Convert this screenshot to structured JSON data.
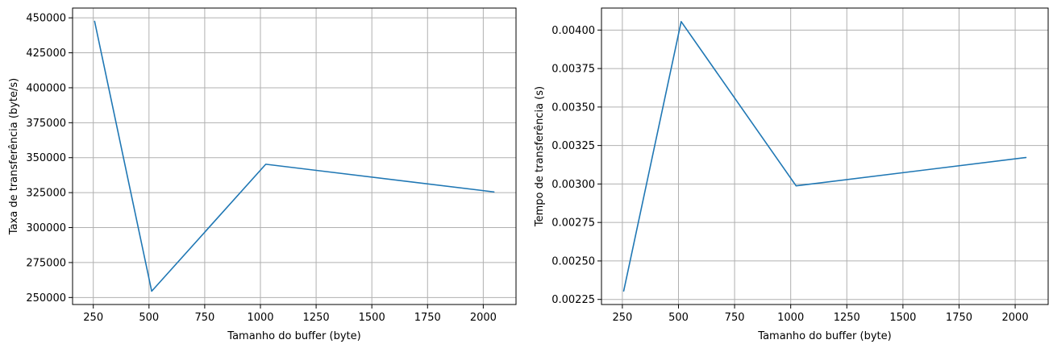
{
  "chart_data": [
    {
      "type": "line",
      "xlabel": "Tamanho do buffer (byte)",
      "ylabel": "Taxa de transferência (byte/s)",
      "x": [
        256,
        512,
        1024,
        2048
      ],
      "series": [
        {
          "values": [
            447500,
            254500,
            345300,
            325500
          ],
          "color": "#1f77b4"
        }
      ],
      "xlim": [
        157,
        2147
      ],
      "ylim": [
        245000,
        457000
      ],
      "xticks": [
        250,
        500,
        750,
        1000,
        1250,
        1500,
        1750,
        2000
      ],
      "xtick_labels": [
        "250",
        "500",
        "750",
        "1000",
        "1250",
        "1500",
        "1750",
        "2000"
      ],
      "yticks": [
        250000,
        275000,
        300000,
        325000,
        350000,
        375000,
        400000,
        425000,
        450000
      ],
      "ytick_labels": [
        "250000",
        "275000",
        "300000",
        "325000",
        "350000",
        "375000",
        "400000",
        "425000",
        "450000"
      ],
      "grid": true
    },
    {
      "type": "line",
      "xlabel": "Tamanho do buffer (byte)",
      "ylabel": "Tempo de transferência (s)",
      "x": [
        256,
        512,
        1024,
        2048
      ],
      "series": [
        {
          "values": [
            0.002305,
            0.004055,
            0.002988,
            0.003172
          ],
          "color": "#1f77b4"
        }
      ],
      "xlim": [
        157,
        2147
      ],
      "ylim": [
        0.002217,
        0.004143
      ],
      "xticks": [
        250,
        500,
        750,
        1000,
        1250,
        1500,
        1750,
        2000
      ],
      "xtick_labels": [
        "250",
        "500",
        "750",
        "1000",
        "1250",
        "1500",
        "1750",
        "2000"
      ],
      "yticks": [
        0.00225,
        0.0025,
        0.00275,
        0.003,
        0.00325,
        0.0035,
        0.00375,
        0.004
      ],
      "ytick_labels": [
        "0.00225",
        "0.00250",
        "0.00275",
        "0.00300",
        "0.00325",
        "0.00350",
        "0.00375",
        "0.00400"
      ],
      "grid": true
    }
  ]
}
